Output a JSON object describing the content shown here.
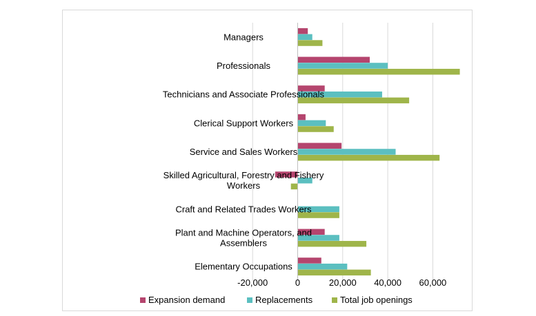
{
  "chart_data": {
    "type": "bar",
    "orientation": "horizontal",
    "title": "",
    "xlabel": "",
    "ylabel": "",
    "categories": [
      [
        "Managers"
      ],
      [
        "Professionals"
      ],
      [
        "Technicians and Associate Professionals"
      ],
      [
        "Clerical Support Workers"
      ],
      [
        "Service and Sales Workers"
      ],
      [
        "Skilled Agricultural, Forestry and Fishery",
        "Workers"
      ],
      [
        "Craft and Related Trades Workers"
      ],
      [
        "Plant and Machine Operators, and",
        "Assemblers"
      ],
      [
        "Elementary Occupations"
      ]
    ],
    "series": [
      {
        "name": "Expansion demand",
        "color": "#b5456e",
        "values": [
          4500,
          32000,
          12000,
          3500,
          19500,
          -10000,
          0,
          12000,
          10500
        ]
      },
      {
        "name": "Replacements",
        "color": "#5bbfc0",
        "values": [
          6500,
          40000,
          37500,
          12500,
          43500,
          6500,
          18500,
          18500,
          22000
        ]
      },
      {
        "name": "Total job openings",
        "color": "#9fb54a",
        "values": [
          11000,
          72000,
          49500,
          16000,
          63000,
          -3000,
          18500,
          30500,
          32500
        ]
      }
    ],
    "xlim": [
      -20000,
      80000
    ],
    "xticks": [
      -20000,
      0,
      20000,
      40000,
      60000
    ],
    "xtick_labels": [
      "-20,000",
      "0",
      "20,000",
      "40,000",
      "60,000"
    ],
    "grid": true,
    "legend_position": "bottom"
  }
}
